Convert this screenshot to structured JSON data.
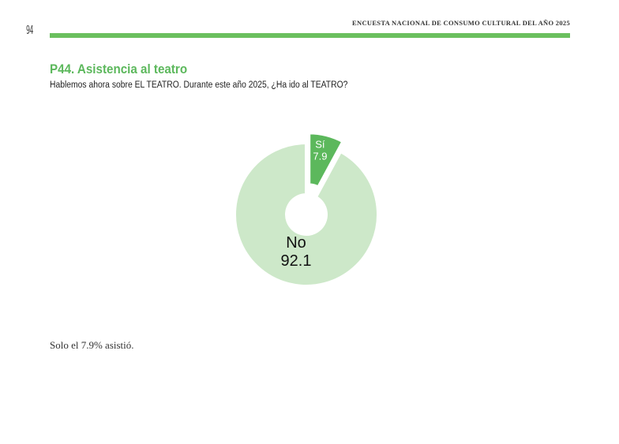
{
  "page": {
    "page_number": "94",
    "running_header": "ENCUESTA NACIONAL DE CONSUMO CULTURAL DEL AÑO 2025",
    "accent_color": "#6abf5e"
  },
  "question": {
    "title": "P44. Asistencia al teatro",
    "text": "Hablemos ahora sobre EL TEATRO.  Durante este año 2025, ¿Ha ido al TEATRO?"
  },
  "chart_data": {
    "type": "pie",
    "style": "donut with exploded slice",
    "categories": [
      "Sí",
      "No"
    ],
    "values": [
      7.9,
      92.1
    ],
    "value_labels": [
      "7.9",
      "92.1"
    ],
    "colors": [
      "#5cb85c",
      "#cde8c9"
    ],
    "label_colors": [
      "#ffffff",
      "#111111"
    ],
    "exploded": [
      true,
      false
    ],
    "title": "",
    "legend": "none"
  },
  "summary": "Solo el 7.9% asistió."
}
